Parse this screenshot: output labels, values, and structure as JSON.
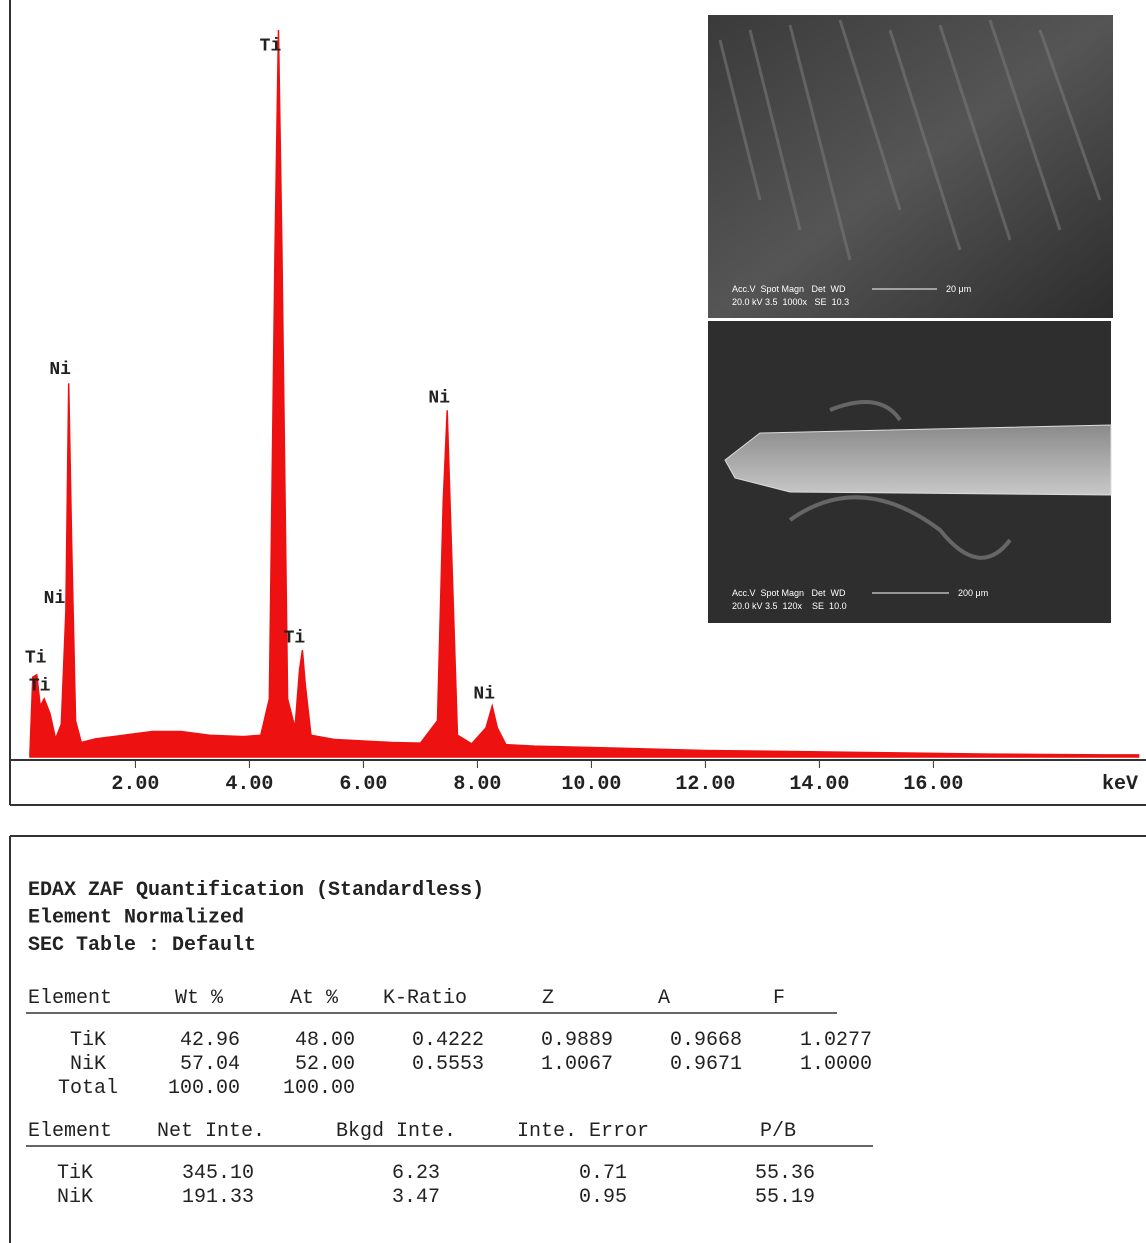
{
  "chart_data": {
    "type": "area",
    "color": "#ee1111",
    "x_label": "keV",
    "x": [
      0.15,
      0.2,
      0.27,
      0.33,
      0.4,
      0.5,
      0.6,
      0.7,
      0.78,
      0.83,
      0.88,
      0.95,
      1.05,
      1.3,
      1.8,
      2.3,
      2.8,
      3.3,
      3.9,
      4.2,
      4.35,
      4.45,
      4.51,
      4.57,
      4.67,
      4.8,
      4.88,
      4.93,
      4.98,
      5.08,
      5.5,
      6.0,
      6.5,
      7.0,
      7.3,
      7.4,
      7.47,
      7.54,
      7.65,
      7.9,
      8.15,
      8.26,
      8.35,
      8.5,
      9,
      10,
      11,
      12,
      13,
      14,
      15,
      16,
      17,
      18,
      19,
      19.6
    ],
    "values": [
      0.5,
      11,
      11.3,
      7,
      8,
      6,
      2.5,
      4.5,
      20,
      51.4,
      30,
      5,
      2,
      2.5,
      3,
      3.5,
      3.5,
      3,
      2.8,
      3,
      8,
      70,
      100,
      70,
      8,
      4,
      12,
      14.7,
      10,
      3,
      2.4,
      2.2,
      2,
      1.9,
      5,
      35,
      47.7,
      30,
      3,
      1.8,
      4,
      7,
      4,
      1.7,
      1.5,
      1.3,
      1.1,
      0.9,
      0.8,
      0.7,
      0.6,
      0.5,
      0.4,
      0.35,
      0.3,
      0.3
    ],
    "xlim": [
      -0.2,
      19.73
    ],
    "ylim": [
      0,
      100
    ],
    "xticks": [
      {
        "value": 2,
        "label": "2.00"
      },
      {
        "value": 4,
        "label": "4.00"
      },
      {
        "value": 6,
        "label": "6.00"
      },
      {
        "value": 8,
        "label": "8.00"
      },
      {
        "value": 10,
        "label": "10.00"
      },
      {
        "value": 12,
        "label": "12.00"
      },
      {
        "value": 14,
        "label": "14.00"
      },
      {
        "value": 16,
        "label": "16.00"
      }
    ],
    "annotations": [
      {
        "text": "Ti",
        "x": 4.37,
        "y": 98
      },
      {
        "text": "Ni",
        "x": 0.68,
        "y": 53.5
      },
      {
        "text": "Ni",
        "x": 0.58,
        "y": 22
      },
      {
        "text": "Ti",
        "x": 0.25,
        "y": 13.8
      },
      {
        "text": "Ti",
        "x": 0.32,
        "y": 10
      },
      {
        "text": "Ti",
        "x": 4.79,
        "y": 16.6
      },
      {
        "text": "Ni",
        "x": 7.33,
        "y": 49.6
      },
      {
        "text": "Ni",
        "x": 8.12,
        "y": 8.9
      }
    ]
  },
  "images": [
    {
      "header": "Acc.V  Spot Magn   Det  WD",
      "params": "20.0 kV 3.5  1000x   SE  10.3",
      "scale": "20 μm"
    },
    {
      "header": "Acc.V  Spot Magn   Det  WD",
      "params": "20.0 kV 3.5  120x    SE  10.0",
      "scale": "200 μm"
    }
  ],
  "report": {
    "title": [
      "EDAX ZAF Quantification (Standardless)",
      "Element Normalized",
      "SEC Table : Default"
    ],
    "table1": {
      "headers": [
        "Element",
        "Wt %",
        "At %",
        "K-Ratio",
        "Z",
        "A",
        "F"
      ],
      "rows": [
        [
          "TiK",
          "42.96",
          "48.00",
          "0.4222",
          "0.9889",
          "0.9668",
          "1.0277"
        ],
        [
          "NiK",
          "57.04",
          "52.00",
          "0.5553",
          "1.0067",
          "0.9671",
          "1.0000"
        ],
        [
          "Total",
          "100.00",
          "100.00"
        ]
      ]
    },
    "table2": {
      "headers": [
        "Element",
        "Net Inte.",
        "Bkgd Inte.",
        "Inte. Error",
        "P/B"
      ],
      "rows": [
        [
          "TiK",
          "345.10",
          "6.23",
          "0.71",
          "55.36"
        ],
        [
          "NiK",
          "191.33",
          "3.47",
          "0.95",
          "55.19"
        ]
      ]
    }
  }
}
